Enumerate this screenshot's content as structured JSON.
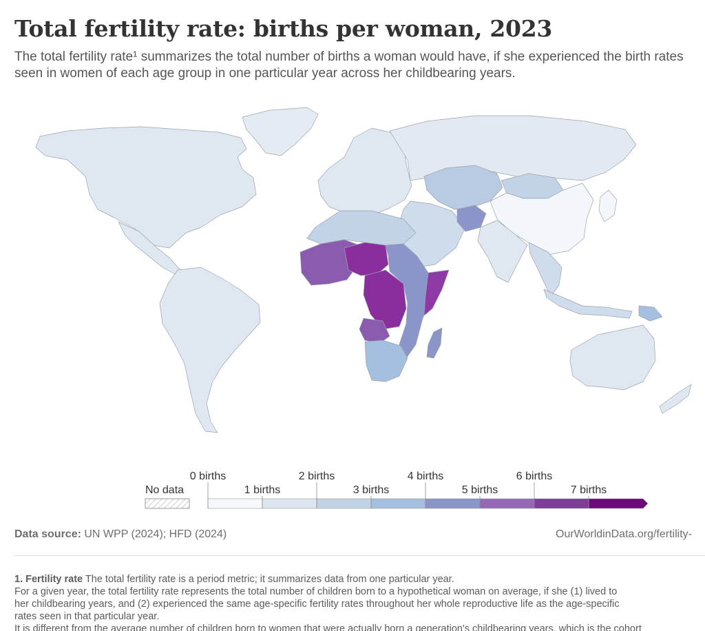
{
  "header": {
    "title": "Total fertility rate: births per woman, 2023",
    "subtitle": "The total fertility rate¹ summarizes the total number of births a woman would have, if she experienced the birth rates seen in women of each age group in one particular year across her childbearing years."
  },
  "legend": {
    "no_data_label": "No data",
    "upper_labels": [
      "0 births",
      "2 births",
      "4 births",
      "6 births"
    ],
    "lower_labels": [
      "1 births",
      "3 births",
      "5 births",
      "7 births"
    ],
    "bins": [
      0,
      1,
      2,
      3,
      4,
      5,
      6,
      7
    ],
    "colors": [
      "#f7f8fb",
      "#dce6f1",
      "#c3d3e7",
      "#a5c0de",
      "#8b95c9",
      "#9468b6",
      "#7d3c98",
      "#6b0a78"
    ]
  },
  "footer": {
    "source_label": "Data source:",
    "source_value": "UN WPP (2024); HFD (2024)",
    "url": "OurWorldinData.org/fertility-"
  },
  "notes": {
    "heading": "1. Fertility rate",
    "line1": "The total fertility rate is a period metric; it summarizes data from one particular year.",
    "line2": "For a given year, the total fertility rate represents the total number of children born to a hypothetical woman on average, if she (1) lived to",
    "line3": "her childbearing years, and (2) experienced the same age-specific fertility rates throughout her whole reproductive life as the age-specific",
    "line4": "rates seen in that particular year.",
    "line5": "It is different from the average number of children born to women that were actually born a generation's childbearing years, which is the cohort"
  },
  "map_regions": [
    {
      "name": "north-america",
      "color": "#dfe7f0"
    },
    {
      "name": "greenland",
      "color": "#e4ebf2"
    },
    {
      "name": "central-america",
      "color": "#dfe7f0"
    },
    {
      "name": "south-america",
      "color": "#dfe7f0"
    },
    {
      "name": "europe",
      "color": "#dfe7f0"
    },
    {
      "name": "russia",
      "color": "#e2e9f1"
    },
    {
      "name": "central-asia",
      "color": "#b9cbe3"
    },
    {
      "name": "china",
      "color": "#f3f6fa"
    },
    {
      "name": "mongolia",
      "color": "#c3d3e7"
    },
    {
      "name": "india",
      "color": "#dfe7f0"
    },
    {
      "name": "middle-east",
      "color": "#cfdcec"
    },
    {
      "name": "afghanistan",
      "color": "#8b95c9"
    },
    {
      "name": "north-africa",
      "color": "#c3d3e7"
    },
    {
      "name": "sahel",
      "color": "#8b5bb0"
    },
    {
      "name": "niger-chad",
      "color": "#8a2e9e"
    },
    {
      "name": "central-africa",
      "color": "#8a2e9e"
    },
    {
      "name": "east-africa",
      "color": "#8b95c9"
    },
    {
      "name": "somalia",
      "color": "#8e3aa5"
    },
    {
      "name": "southern-africa",
      "color": "#a5c0de"
    },
    {
      "name": "angola",
      "color": "#8b5bb0"
    },
    {
      "name": "madagascar",
      "color": "#8b95c9"
    },
    {
      "name": "southeast-asia",
      "color": "#cfdcec"
    },
    {
      "name": "indonesia",
      "color": "#cfdcec"
    },
    {
      "name": "papua-new-guinea",
      "color": "#a5c0de"
    },
    {
      "name": "australia",
      "color": "#dfe7f0"
    },
    {
      "name": "new-zealand",
      "color": "#dfe7f0"
    },
    {
      "name": "japan",
      "color": "#f3f6fa"
    }
  ]
}
